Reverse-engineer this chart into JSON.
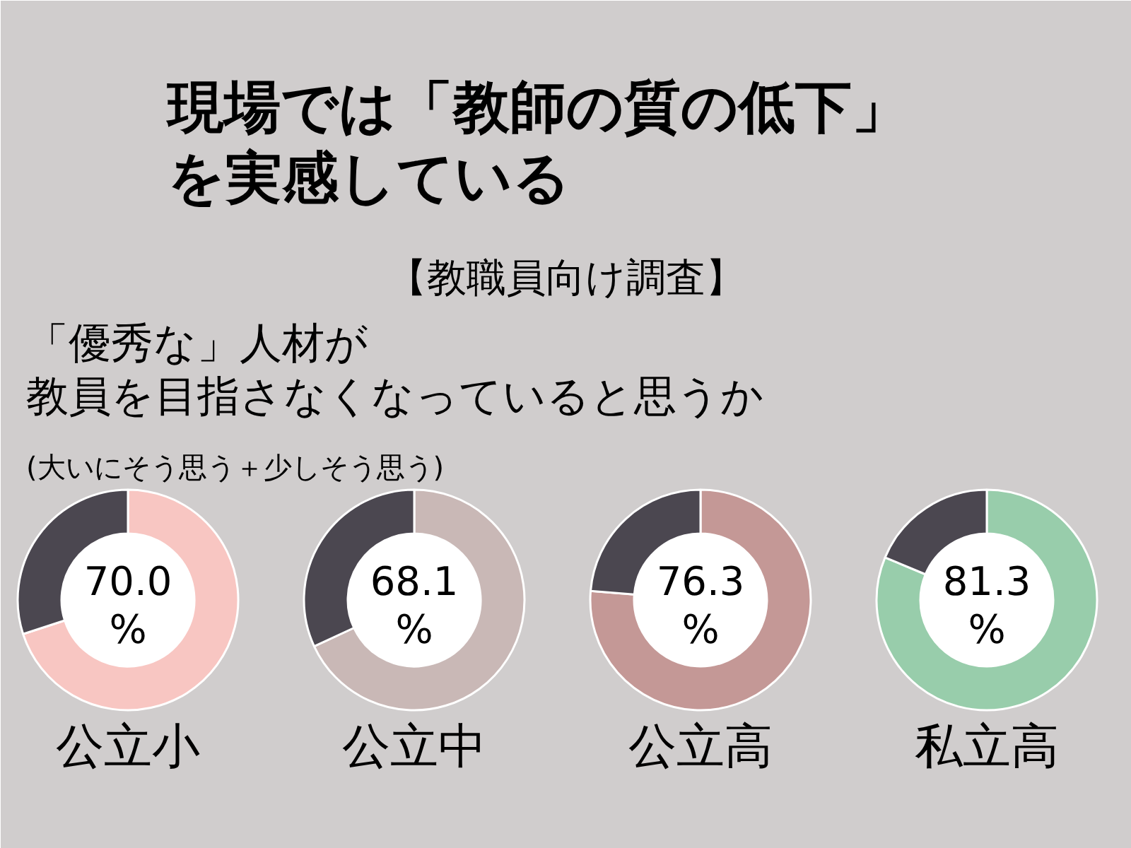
{
  "chart_data": [
    {
      "type": "other",
      "title": "現場では「教師の質の低下」を実感している",
      "subtitle": "【教職員向け調査】",
      "annotations": [
        "「優秀な」人材が教員を目指さなくなっていると思うか",
        "(大いにそう思う＋少しそう思う)"
      ]
    },
    {
      "type": "donut",
      "title": "公立小",
      "categories": [
        null,
        null
      ],
      "values": [
        70.0,
        30.0
      ],
      "colors": [
        "#f8c6c2",
        "#4b4750"
      ],
      "value_labels": [
        "70.0\n%",
        null
      ]
    },
    {
      "type": "donut",
      "title": "公立中",
      "categories": [
        null,
        null
      ],
      "values": [
        68.1,
        31.9
      ],
      "colors": [
        "#c9b8b6",
        "#4b4750"
      ],
      "value_labels": [
        "68.1\n%",
        null
      ]
    },
    {
      "type": "donut",
      "title": "公立高",
      "categories": [
        null,
        null
      ],
      "values": [
        76.3,
        23.7
      ],
      "colors": [
        "#c49896",
        "#4b4750"
      ],
      "value_labels": [
        "76.3\n%",
        null
      ]
    },
    {
      "type": "donut",
      "title": "私立高",
      "categories": [
        null,
        null
      ],
      "values": [
        81.3,
        18.7
      ],
      "colors": [
        "#98cdab",
        "#4b4750"
      ],
      "value_labels": [
        "81.3\n%",
        null
      ]
    }
  ]
}
